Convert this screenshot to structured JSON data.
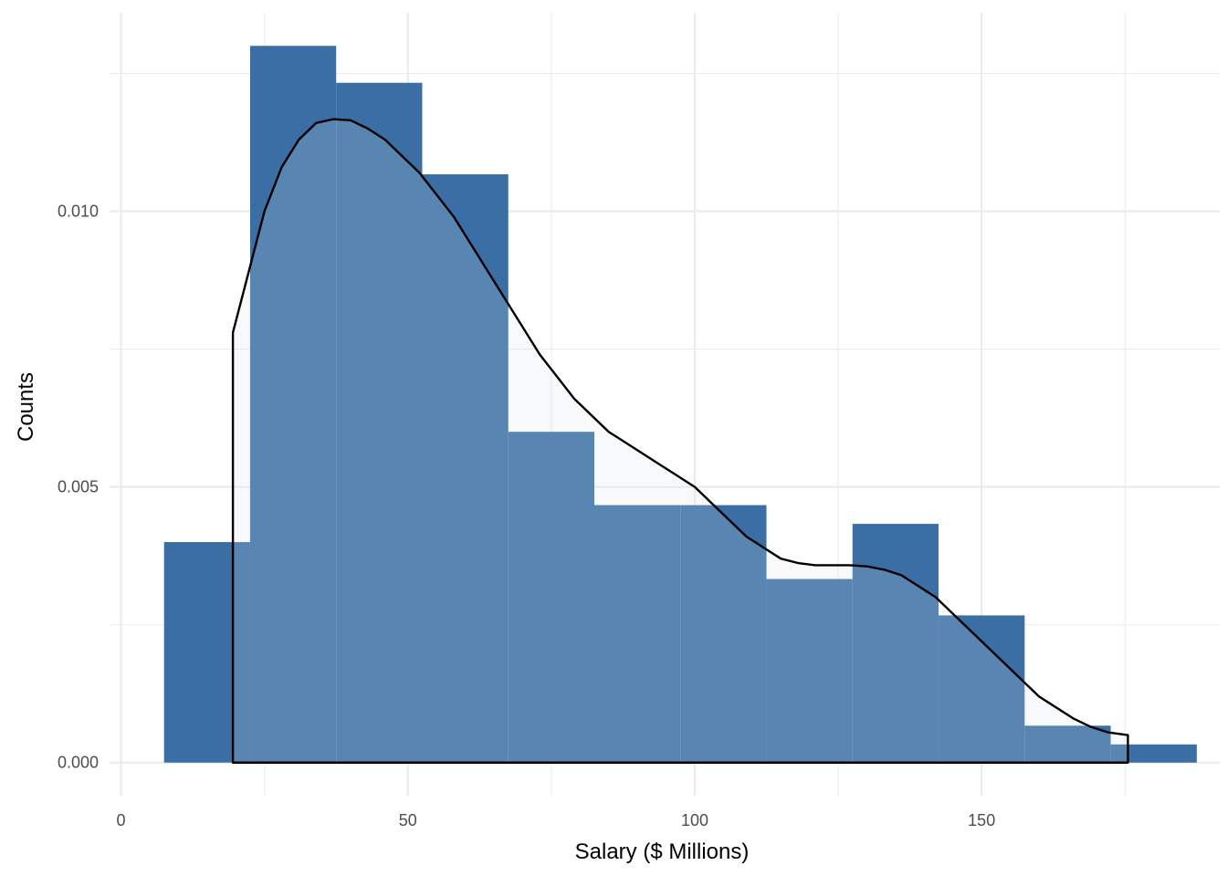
{
  "chart_data": {
    "type": "bar",
    "subtype": "histogram-with-density",
    "title": "",
    "xlabel": "Salary ($ Millions)",
    "ylabel": "Counts",
    "xlim": [
      -2,
      191.5
    ],
    "ylim": [
      -0.0006,
      0.0136
    ],
    "x_ticks": [
      0,
      50,
      100,
      150
    ],
    "x_tick_labels": [
      "0",
      "50",
      "100",
      "150"
    ],
    "y_ticks": [
      0,
      0.005,
      0.01
    ],
    "y_tick_labels": [
      "0.000",
      "0.005",
      "0.010"
    ],
    "grid": true,
    "bins": [
      {
        "x0": 7.5,
        "x1": 22.5,
        "value": 0.004
      },
      {
        "x0": 22.5,
        "x1": 37.5,
        "value": 0.013
      },
      {
        "x0": 37.5,
        "x1": 52.5,
        "value": 0.01233
      },
      {
        "x0": 52.5,
        "x1": 67.5,
        "value": 0.01067
      },
      {
        "x0": 67.5,
        "x1": 82.5,
        "value": 0.006
      },
      {
        "x0": 82.5,
        "x1": 97.5,
        "value": 0.00467
      },
      {
        "x0": 97.5,
        "x1": 112.5,
        "value": 0.00467
      },
      {
        "x0": 112.5,
        "x1": 127.5,
        "value": 0.00333
      },
      {
        "x0": 127.5,
        "x1": 142.5,
        "value": 0.00433
      },
      {
        "x0": 142.5,
        "x1": 157.5,
        "value": 0.00267
      },
      {
        "x0": 157.5,
        "x1": 172.5,
        "value": 0.00067
      },
      {
        "x0": 172.5,
        "x1": 187.5,
        "value": 0.00033
      }
    ],
    "density": {
      "x": [
        19.5,
        22,
        25,
        28,
        31,
        34,
        37,
        40,
        43,
        46,
        49,
        52,
        55,
        58,
        61,
        64,
        67,
        70,
        73,
        76,
        79,
        82,
        85,
        88,
        91,
        94,
        97,
        100,
        103,
        106,
        109,
        112,
        115,
        118,
        121,
        124,
        127,
        130,
        133,
        136,
        139,
        142,
        145,
        148,
        151,
        154,
        157,
        160,
        163,
        166,
        169,
        172,
        175.5
      ],
      "y": [
        0.0078,
        0.0088,
        0.01,
        0.0108,
        0.0113,
        0.0116,
        0.01167,
        0.01165,
        0.0115,
        0.0113,
        0.011,
        0.0107,
        0.0103,
        0.0099,
        0.0094,
        0.0089,
        0.0084,
        0.0079,
        0.0074,
        0.007,
        0.0066,
        0.0063,
        0.006,
        0.0058,
        0.0056,
        0.0054,
        0.0052,
        0.005,
        0.0047,
        0.0044,
        0.0041,
        0.0039,
        0.0037,
        0.00362,
        0.00358,
        0.00358,
        0.00358,
        0.00356,
        0.0035,
        0.0034,
        0.0032,
        0.003,
        0.0027,
        0.0024,
        0.0021,
        0.0018,
        0.0015,
        0.0012,
        0.001,
        0.0008,
        0.00065,
        0.00055,
        0.0005
      ]
    },
    "colors": {
      "bar": "#3a6ea5",
      "density_fill": "#d9e2ec",
      "density_line": "#000000",
      "grid": "#ebebeb",
      "tick_text": "#4d4d4d"
    }
  }
}
